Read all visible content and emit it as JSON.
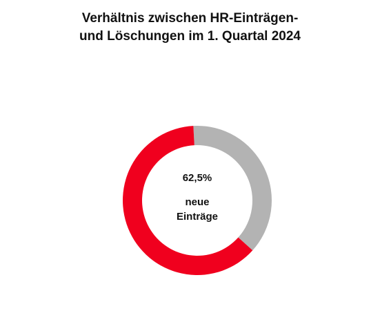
{
  "chart_data": {
    "type": "pie",
    "variant": "donut",
    "title_lines": [
      "Verhältnis zwischen HR-Einträgen-",
      "und Löschungen im 1. Quartal 2024"
    ],
    "slices": [
      {
        "label": "neue Einträge",
        "value": 62.5,
        "color": "#f0001e"
      },
      {
        "label": "",
        "value": 37.5,
        "color": "#b3b3b3"
      }
    ],
    "center_value": "62,5%",
    "center_label_lines": [
      "neue",
      "Einträge"
    ],
    "legend": "none",
    "grid": false
  }
}
